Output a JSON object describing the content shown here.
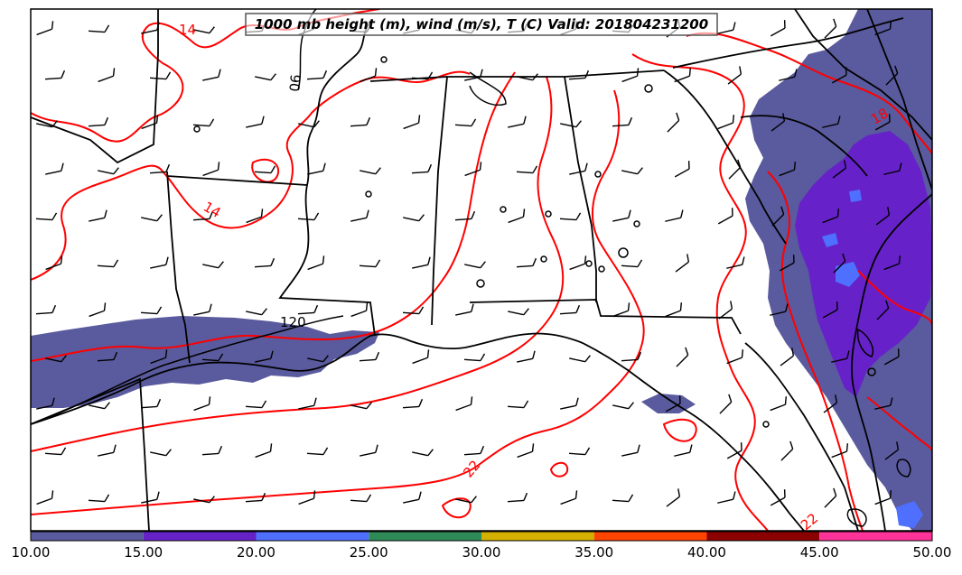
{
  "title": "1000 mb height (m), wind (m/s), T (C) Valid: 201804231200",
  "colorbar": {
    "ticks": [
      "10.00",
      "15.00",
      "20.00",
      "25.00",
      "30.00",
      "35.00",
      "40.00",
      "45.00",
      "50.00"
    ],
    "colors": [
      "#5a5a9e",
      "#6622c8",
      "#4f6fff",
      "#2e8b57",
      "#d4b000",
      "#ff4500",
      "#8b0000",
      "#ff3399"
    ]
  },
  "contour_labels": {
    "temp": [
      "14",
      "14",
      "22",
      "18",
      "22"
    ],
    "height": [
      "90",
      "120"
    ]
  },
  "colors": {
    "temperature": "#ff0000",
    "height": "#000000",
    "boundary": "#000000",
    "precip_light": "#5a5a9e",
    "precip_mid": "#6622c8",
    "precip_high": "#4f6fff"
  },
  "wind_barbs": "wind-barb-icon"
}
